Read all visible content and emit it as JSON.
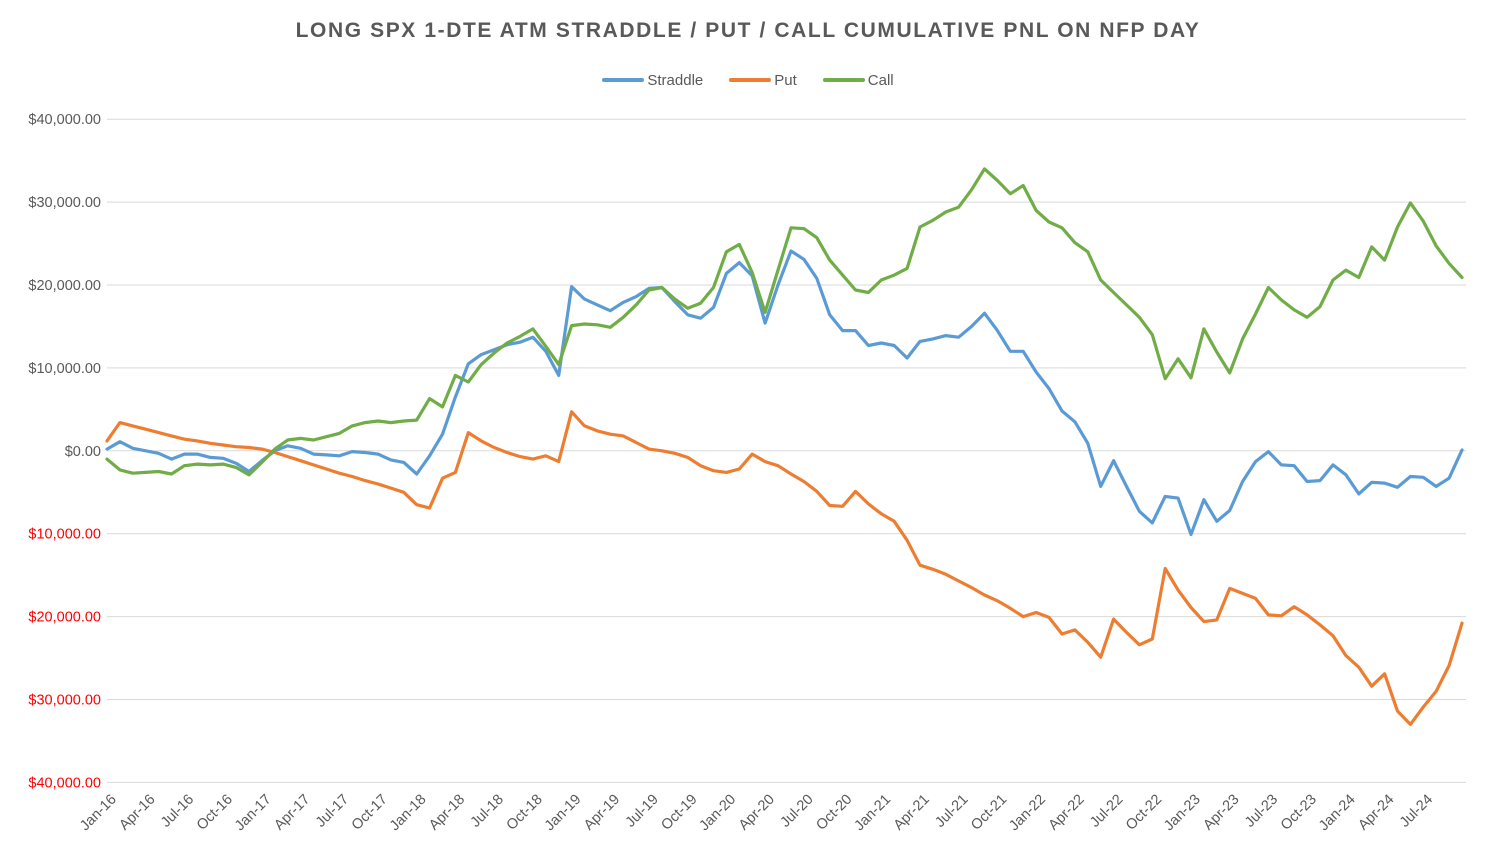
{
  "chart_data": {
    "type": "line",
    "title": "LONG SPX 1-DTE ATM STRADDLE / PUT / CALL CUMULATIVE PNL ON NFP DAY",
    "legend_position": "top",
    "grid": true,
    "axis_label_color": "#595959",
    "negative_label_color": "#FF0000",
    "gridline_color": "#D9D9D9",
    "title_color": "#595959",
    "ylim": [
      -40000,
      40000
    ],
    "y_tick_step": 10000,
    "x_tick_step": 3,
    "x_last_label_index": 102,
    "y_ticks": [
      {
        "label": "$40,000.00",
        "value": 40000,
        "negative": false
      },
      {
        "label": "$30,000.00",
        "value": 30000,
        "negative": false
      },
      {
        "label": "$20,000.00",
        "value": 20000,
        "negative": false
      },
      {
        "label": "$10,000.00",
        "value": 10000,
        "negative": false
      },
      {
        "label": "$0.00",
        "value": 0,
        "negative": false
      },
      {
        "label": "$10,000.00",
        "value": -10000,
        "negative": true
      },
      {
        "label": "$20,000.00",
        "value": -20000,
        "negative": true
      },
      {
        "label": "$30,000.00",
        "value": -30000,
        "negative": true
      },
      {
        "label": "$40,000.00",
        "value": -40000,
        "negative": true
      }
    ],
    "categories": [
      "Jan-16",
      "Feb-16",
      "Mar-16",
      "Apr-16",
      "May-16",
      "Jun-16",
      "Jul-16",
      "Aug-16",
      "Sep-16",
      "Oct-16",
      "Nov-16",
      "Dec-16",
      "Jan-17",
      "Feb-17",
      "Mar-17",
      "Apr-17",
      "May-17",
      "Jun-17",
      "Jul-17",
      "Aug-17",
      "Sep-17",
      "Oct-17",
      "Nov-17",
      "Dec-17",
      "Jan-18",
      "Feb-18",
      "Mar-18",
      "Apr-18",
      "May-18",
      "Jun-18",
      "Jul-18",
      "Aug-18",
      "Sep-18",
      "Oct-18",
      "Nov-18",
      "Dec-18",
      "Jan-19",
      "Feb-19",
      "Mar-19",
      "Apr-19",
      "May-19",
      "Jun-19",
      "Jul-19",
      "Aug-19",
      "Sep-19",
      "Oct-19",
      "Nov-19",
      "Dec-19",
      "Jan-20",
      "Feb-20",
      "Mar-20",
      "Apr-20",
      "May-20",
      "Jun-20",
      "Jul-20",
      "Aug-20",
      "Sep-20",
      "Oct-20",
      "Nov-20",
      "Dec-20",
      "Jan-21",
      "Feb-21",
      "Mar-21",
      "Apr-21",
      "May-21",
      "Jun-21",
      "Jul-21",
      "Aug-21",
      "Sep-21",
      "Oct-21",
      "Nov-21",
      "Dec-21",
      "Jan-22",
      "Feb-22",
      "Mar-22",
      "Apr-22",
      "May-22",
      "Jun-22",
      "Jul-22",
      "Aug-22",
      "Sep-22",
      "Oct-22",
      "Nov-22",
      "Dec-22",
      "Jan-23",
      "Feb-23",
      "Mar-23",
      "Apr-23",
      "May-23",
      "Jun-23",
      "Jul-23",
      "Aug-23",
      "Sep-23",
      "Oct-23",
      "Nov-23",
      "Dec-23",
      "Jan-24",
      "Feb-24",
      "Mar-24",
      "Apr-24",
      "May-24",
      "Jun-24",
      "Jul-24",
      "Aug-24",
      "Sep-24",
      "Oct-24"
    ],
    "series": [
      {
        "name": "Straddle",
        "color": "#5B9BD5",
        "values": [
          200,
          1100,
          300,
          0,
          -300,
          -1000,
          -400,
          -400,
          -800,
          -900,
          -1500,
          -2500,
          -1200,
          0,
          600,
          300,
          -400,
          -500,
          -600,
          -100,
          -200,
          -400,
          -1100,
          -1400,
          -2800,
          -600,
          2000,
          6500,
          10500,
          11600,
          12200,
          12800,
          13100,
          13700,
          12000,
          9100,
          19800,
          18300,
          17600,
          16900,
          17900,
          18600,
          19600,
          19700,
          18000,
          16400,
          16000,
          17300,
          21400,
          22700,
          21100,
          15400,
          20000,
          24100,
          23100,
          20800,
          16400,
          14500,
          14500,
          12700,
          13000,
          12700,
          11200,
          13200,
          13500,
          13900,
          13700,
          15000,
          16600,
          14500,
          12000,
          12000,
          9500,
          7500,
          4800,
          3500,
          900,
          -4300,
          -1200,
          -4300,
          -7300,
          -8700,
          -5500,
          -5700,
          -10100,
          -5900,
          -8500,
          -7200,
          -3700,
          -1300,
          -100,
          -1700,
          -1800,
          -3700,
          -3600,
          -1700,
          -2900,
          -5200,
          -3800,
          -3900,
          -4400,
          -3100,
          -3200,
          -4300,
          -3300,
          100
        ]
      },
      {
        "name": "Put",
        "color": "#ED7D31",
        "values": [
          1200,
          3400,
          3000,
          2600,
          2200,
          1800,
          1400,
          1200,
          900,
          700,
          500,
          400,
          200,
          -200,
          -700,
          -1200,
          -1700,
          -2200,
          -2700,
          -3100,
          -3600,
          -4000,
          -4500,
          -5000,
          -6500,
          -6900,
          -3300,
          -2600,
          2200,
          1200,
          400,
          -200,
          -700,
          -1000,
          -600,
          -1300,
          4700,
          3000,
          2400,
          2000,
          1800,
          1000,
          200,
          0,
          -300,
          -800,
          -1800,
          -2400,
          -2600,
          -2200,
          -400,
          -1300,
          -1800,
          -2800,
          -3700,
          -4900,
          -6600,
          -6700,
          -4900,
          -6400,
          -7600,
          -8500,
          -10800,
          -13800,
          -14300,
          -14900,
          -15700,
          -16500,
          -17400,
          -18100,
          -19000,
          -20000,
          -19500,
          -20100,
          -22100,
          -21600,
          -23100,
          -24900,
          -20300,
          -21900,
          -23400,
          -22700,
          -14200,
          -16800,
          -18900,
          -20600,
          -20400,
          -16600,
          -17200,
          -17800,
          -19800,
          -19900,
          -18800,
          -19800,
          -21000,
          -22300,
          -24700,
          -26100,
          -28400,
          -26900,
          -31400,
          -33000,
          -30900,
          -29000,
          -25900,
          -20800
        ]
      },
      {
        "name": "Call",
        "color": "#70AD47",
        "values": [
          -1000,
          -2300,
          -2700,
          -2600,
          -2500,
          -2800,
          -1800,
          -1600,
          -1700,
          -1600,
          -2000,
          -2900,
          -1400,
          200,
          1300,
          1500,
          1300,
          1700,
          2100,
          3000,
          3400,
          3600,
          3400,
          3600,
          3700,
          6300,
          5300,
          9100,
          8300,
          10400,
          11800,
          13000,
          13800,
          14700,
          12600,
          10400,
          15100,
          15300,
          15200,
          14900,
          16100,
          17600,
          19400,
          19700,
          18300,
          17200,
          17800,
          19700,
          24000,
          24900,
          21500,
          16700,
          21800,
          26900,
          26800,
          25700,
          23000,
          21200,
          19400,
          19100,
          20600,
          21200,
          22000,
          27000,
          27800,
          28800,
          29400,
          31500,
          34000,
          32600,
          31000,
          32000,
          29000,
          27600,
          26900,
          25100,
          24000,
          20600,
          19100,
          17600,
          16100,
          14000,
          8700,
          11100,
          8800,
          14700,
          11900,
          9400,
          13500,
          16500,
          19700,
          18200,
          17000,
          16100,
          17400,
          20600,
          21800,
          20900,
          24600,
          23000,
          27000,
          29900,
          27700,
          24700,
          22600,
          20900
        ]
      }
    ]
  }
}
